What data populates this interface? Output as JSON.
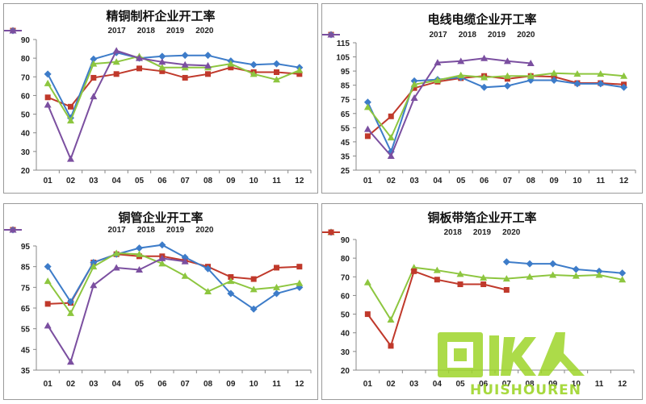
{
  "chart_data": [
    {
      "type": "line",
      "title": "精铜制杆企业开工率",
      "categories": [
        "01",
        "02",
        "03",
        "04",
        "05",
        "06",
        "07",
        "08",
        "09",
        "10",
        "11",
        "12"
      ],
      "ylim": [
        20,
        90
      ],
      "yticks": [
        20,
        30,
        40,
        50,
        60,
        70,
        80,
        90
      ],
      "legend_position": "top",
      "grid": false,
      "series": [
        {
          "name": "2017",
          "color": "#c0392b",
          "marker": "square",
          "values": [
            59,
            54,
            69.5,
            71.5,
            74.5,
            73,
            69.5,
            71.5,
            75,
            72.5,
            72.5,
            71.5
          ]
        },
        {
          "name": "2018",
          "color": "#3d7cc9",
          "marker": "diamond",
          "values": [
            71.5,
            48,
            79.5,
            83,
            80,
            81,
            81.5,
            81.5,
            78.5,
            76.5,
            77,
            75
          ]
        },
        {
          "name": "2019",
          "color": "#8dc63f",
          "marker": "triangle",
          "values": [
            66.5,
            46.5,
            77,
            78,
            81,
            75,
            75,
            75,
            77,
            71.5,
            68.5,
            73.5
          ]
        },
        {
          "name": "2020",
          "color": "#7b4fa0",
          "marker": "triangle",
          "values": [
            55,
            26,
            59.5,
            84,
            80,
            78,
            76.5,
            76,
            null,
            null,
            null,
            null
          ]
        }
      ]
    },
    {
      "type": "line",
      "title": "电线电缆企业开工率",
      "categories": [
        "01",
        "02",
        "03",
        "04",
        "05",
        "06",
        "07",
        "08",
        "09",
        "10",
        "11",
        "12"
      ],
      "ylim": [
        25,
        115
      ],
      "yticks": [
        25,
        35,
        45,
        55,
        65,
        75,
        85,
        95,
        105,
        115
      ],
      "legend_position": "top",
      "grid": false,
      "series": [
        {
          "name": "2017",
          "color": "#c0392b",
          "marker": "square",
          "values": [
            49,
            63,
            83,
            87.5,
            90,
            91.5,
            89.5,
            91.5,
            91,
            86.5,
            86.5,
            85.5
          ]
        },
        {
          "name": "2018",
          "color": "#3d7cc9",
          "marker": "diamond",
          "values": [
            73,
            38,
            88,
            89,
            90.5,
            83.5,
            84.5,
            88.5,
            88.5,
            86,
            86,
            83.5
          ]
        },
        {
          "name": "2019",
          "color": "#8dc63f",
          "marker": "triangle",
          "values": [
            69.5,
            48,
            85.5,
            88.5,
            92,
            90.5,
            91.5,
            91.5,
            93.5,
            93,
            93,
            91.5
          ]
        },
        {
          "name": "2020",
          "color": "#7b4fa0",
          "marker": "triangle",
          "values": [
            54,
            35,
            76,
            101,
            102,
            104,
            102,
            100.5,
            null,
            null,
            null,
            null
          ]
        }
      ]
    },
    {
      "type": "line",
      "title": "铜管企业开工率",
      "categories": [
        "01",
        "02",
        "03",
        "04",
        "05",
        "06",
        "07",
        "08",
        "09",
        "10",
        "11",
        "12"
      ],
      "ylim": [
        35,
        95
      ],
      "yticks": [
        35,
        45,
        55,
        65,
        75,
        85,
        95
      ],
      "legend_position": "top",
      "grid": false,
      "series": [
        {
          "name": "2017",
          "color": "#c0392b",
          "marker": "square",
          "values": [
            67,
            67.5,
            87,
            91,
            90,
            90,
            88,
            85,
            80,
            79,
            84.5,
            85
          ]
        },
        {
          "name": "2018",
          "color": "#3d7cc9",
          "marker": "diamond",
          "values": [
            85,
            68,
            87,
            91,
            94,
            95.5,
            89.5,
            84,
            72,
            64.5,
            72,
            75
          ]
        },
        {
          "name": "2019",
          "color": "#8dc63f",
          "marker": "triangle",
          "values": [
            78,
            62.5,
            85,
            91.5,
            91,
            86.5,
            80.5,
            73,
            78,
            74,
            75,
            77
          ]
        },
        {
          "name": "2020",
          "color": "#7b4fa0",
          "marker": "triangle",
          "values": [
            56.5,
            39,
            76,
            84.5,
            83.5,
            89,
            87.5,
            null,
            null,
            null,
            null,
            null
          ]
        }
      ]
    },
    {
      "type": "line",
      "title": "铜板带箔企业开工率",
      "categories": [
        "01",
        "02",
        "03",
        "04",
        "05",
        "06",
        "07",
        "08",
        "09",
        "10",
        "11",
        "12"
      ],
      "ylim": [
        20,
        90
      ],
      "yticks": [
        20,
        30,
        40,
        50,
        60,
        70,
        80,
        90
      ],
      "legend_position": "top",
      "grid": false,
      "series": [
        {
          "name": "2018",
          "color": "#3d7cc9",
          "marker": "diamond",
          "values": [
            null,
            null,
            null,
            null,
            null,
            null,
            78,
            77,
            77,
            74,
            73,
            72
          ]
        },
        {
          "name": "2019",
          "color": "#8dc63f",
          "marker": "triangle",
          "values": [
            67,
            47,
            75,
            73.5,
            71.5,
            69.5,
            69,
            70,
            71,
            70.5,
            71,
            68.5
          ]
        },
        {
          "name": "2020",
          "color": "#c0392b",
          "marker": "square",
          "values": [
            50,
            33,
            73,
            68.5,
            66,
            66,
            63,
            null,
            null,
            null,
            null,
            null
          ]
        }
      ]
    }
  ],
  "watermark": {
    "text": "HUISHOUREN",
    "logo_glyphs": "回收人",
    "color": "#9ed52a",
    "icon": "huishouren-logo-icon"
  }
}
